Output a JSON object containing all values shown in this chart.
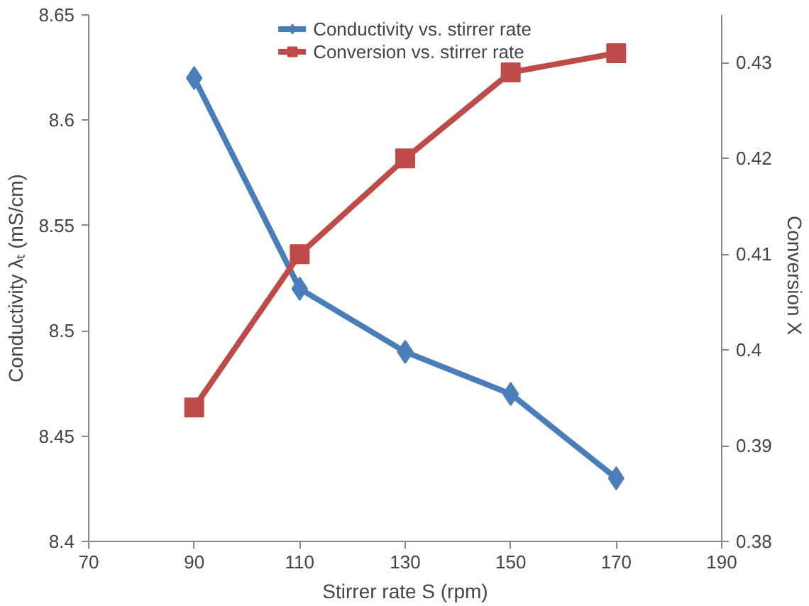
{
  "chart_data": {
    "type": "line",
    "xlabel": "Stirrer rate S (rpm)",
    "ylabel": "Conductivity λₜ (mS/cm)",
    "y2label": "Conversion  X",
    "x": [
      90,
      110,
      130,
      150,
      170
    ],
    "series": [
      {
        "name": "Conductivity vs. stirrer rate",
        "color": "#4a7ebb",
        "marker": "diamond",
        "values": [
          8.62,
          8.52,
          8.49,
          8.47,
          8.43
        ]
      },
      {
        "name": "Conversion vs. stirrer rate",
        "color": "#be4b48",
        "marker": "square",
        "axis": "y2",
        "values": [
          0.394,
          0.41,
          0.42,
          0.429,
          0.431
        ]
      }
    ],
    "xlim": [
      70,
      190
    ],
    "xticks": [
      70,
      90,
      110,
      130,
      150,
      170,
      190
    ],
    "ylim": [
      8.4,
      8.65
    ],
    "yticks": [
      8.4,
      8.45,
      8.5,
      8.55,
      8.6,
      8.65
    ],
    "y2lim": [
      0.38,
      0.435
    ],
    "y2ticks": [
      0.38,
      0.39,
      0.4,
      0.41,
      0.42,
      0.43
    ],
    "grid": false,
    "legend": "top"
  }
}
